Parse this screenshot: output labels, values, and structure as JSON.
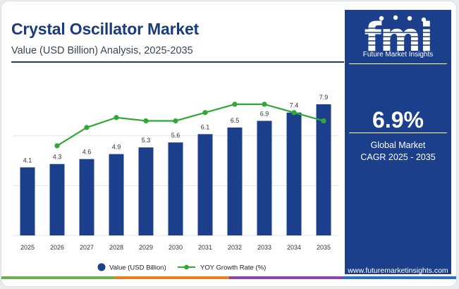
{
  "header": {
    "title": "Crystal Oscillator Market",
    "subtitle": "Value (USD Billion) Analysis, 2025-2035"
  },
  "side_panel": {
    "logo_letters": "fmi",
    "logo_text": "Future Market Insights",
    "cagr_value": "6.9%",
    "cagr_label_line1": "Global Market",
    "cagr_label_line2": "CAGR 2025 - 2035",
    "website": "www.futuremarketinsights.com"
  },
  "colors": {
    "bar": "#1b3f8b",
    "line": "#2fa836",
    "title": "#1a3c7a",
    "panel": "#1b3f8b",
    "bottom_bar": [
      "#6ab04c",
      "#e67e22",
      "#8e44ad",
      "#2c6fbf"
    ]
  },
  "chart_data": {
    "type": "bar",
    "categories": [
      "2025",
      "2026",
      "2027",
      "2028",
      "2029",
      "2030",
      "2031",
      "2032",
      "2033",
      "2034",
      "2035"
    ],
    "series": [
      {
        "name": "Value (USD Billion)",
        "type": "bar",
        "values": [
          4.1,
          4.3,
          4.6,
          4.9,
          5.3,
          5.6,
          6.1,
          6.5,
          6.9,
          7.4,
          7.9
        ],
        "data_labels": [
          "4.1",
          "4.3",
          "4.6",
          "4.9",
          "5.3",
          "5.6",
          "6.1",
          "6.5",
          "6.9",
          "7.4",
          "7.9"
        ]
      },
      {
        "name": "YOY Growth Rate (%)",
        "type": "line",
        "values": [
          null,
          5.4,
          6.5,
          7.1,
          6.9,
          6.9,
          7.4,
          7.9,
          7.9,
          7.4,
          6.9
        ]
      }
    ],
    "ylim_bars": [
      0,
      9
    ],
    "ylim_line": [
      0,
      9
    ],
    "grid": true,
    "legend_position": "bottom"
  }
}
